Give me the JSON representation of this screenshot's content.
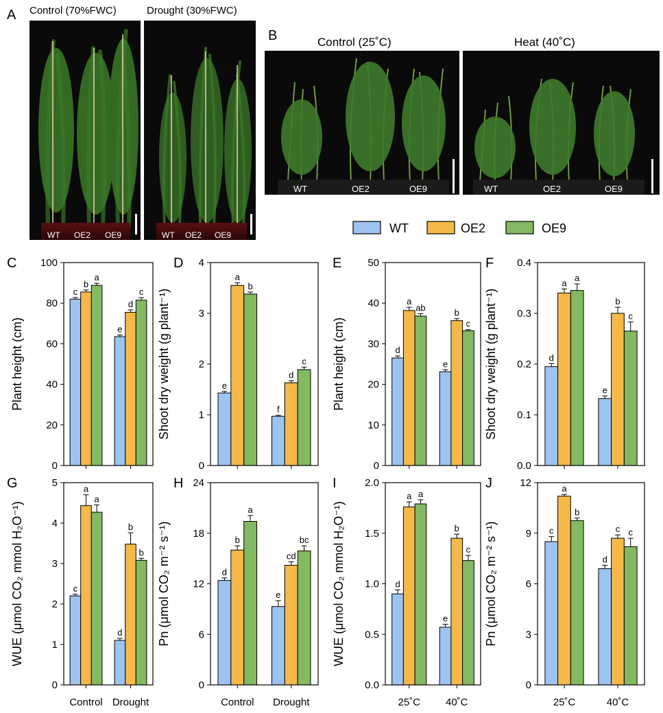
{
  "photos": {
    "A": {
      "letter": "A",
      "panels": [
        {
          "title": "Control (70%FWC)",
          "genotypes": [
            "WT",
            "OE2",
            "OE9"
          ]
        },
        {
          "title": "Drought (30%FWC)",
          "genotypes": [
            "WT",
            "OE2",
            "OE9"
          ]
        }
      ]
    },
    "B": {
      "letter": "B",
      "panels": [
        {
          "title": "Control (25˚C)",
          "genotypes": [
            "WT",
            "OE2",
            "OE9"
          ]
        },
        {
          "title": "Heat (40˚C)",
          "genotypes": [
            "WT",
            "OE2",
            "OE9"
          ]
        }
      ]
    }
  },
  "legend": {
    "entries": [
      {
        "label": "WT",
        "color": "#9dc3f0"
      },
      {
        "label": "OE2",
        "color": "#f5b949"
      },
      {
        "label": "OE9",
        "color": "#82b961"
      }
    ]
  },
  "chart_data": [
    {
      "panel": "C",
      "type": "bar",
      "categories": [
        "Control",
        "Drought"
      ],
      "ylabel": "Plant height (cm)",
      "ylim": [
        0,
        100
      ],
      "yticks": [
        "0",
        "20",
        "40",
        "60",
        "80",
        "100"
      ],
      "series": [
        {
          "name": "WT",
          "values": [
            82,
            63.5
          ],
          "errors": [
            0.8,
            0.8
          ],
          "letters": [
            "c",
            "e"
          ]
        },
        {
          "name": "OE2",
          "values": [
            85.5,
            75.5
          ],
          "errors": [
            1.0,
            1.2
          ],
          "letters": [
            "b",
            "d"
          ]
        },
        {
          "name": "OE9",
          "values": [
            88.8,
            81.5
          ],
          "errors": [
            1.0,
            1.2
          ],
          "letters": [
            "a",
            "c"
          ]
        }
      ]
    },
    {
      "panel": "D",
      "type": "bar",
      "categories": [
        "Control",
        "Drought"
      ],
      "ylabel": "Shoot dry weight (g plant⁻¹)",
      "ylim": [
        0,
        4
      ],
      "yticks": [
        "0",
        "1",
        "2",
        "3",
        "4"
      ],
      "series": [
        {
          "name": "WT",
          "values": [
            1.43,
            0.97
          ],
          "errors": [
            0.03,
            0.02
          ],
          "letters": [
            "e",
            "f"
          ]
        },
        {
          "name": "OE2",
          "values": [
            3.55,
            1.63
          ],
          "errors": [
            0.05,
            0.04
          ],
          "letters": [
            "a",
            "d"
          ]
        },
        {
          "name": "OE9",
          "values": [
            3.38,
            1.89
          ],
          "errors": [
            0.04,
            0.05
          ],
          "letters": [
            "b",
            "c"
          ]
        }
      ]
    },
    {
      "panel": "E",
      "type": "bar",
      "categories": [
        "25˚C",
        "40˚C"
      ],
      "ylabel": "Plant height (cm)",
      "ylim": [
        0,
        50
      ],
      "yticks": [
        "0",
        "10",
        "20",
        "30",
        "40",
        "50"
      ],
      "series": [
        {
          "name": "WT",
          "values": [
            26.5,
            23.1
          ],
          "errors": [
            0.5,
            0.5
          ],
          "letters": [
            "d",
            "e"
          ]
        },
        {
          "name": "OE2",
          "values": [
            38.2,
            35.7
          ],
          "errors": [
            0.8,
            0.5
          ],
          "letters": [
            "a",
            "b"
          ]
        },
        {
          "name": "OE9",
          "values": [
            36.8,
            33.2
          ],
          "errors": [
            0.6,
            0.3
          ],
          "letters": [
            "ab",
            "c"
          ]
        }
      ]
    },
    {
      "panel": "F",
      "type": "bar",
      "categories": [
        "25˚C",
        "40˚C"
      ],
      "ylabel": "Shoot dry weight (g plant⁻¹)",
      "ylim": [
        0,
        0.4
      ],
      "yticks": [
        "0.0",
        "0.1",
        "0.2",
        "0.3",
        "0.4"
      ],
      "series": [
        {
          "name": "WT",
          "values": [
            0.195,
            0.132
          ],
          "errors": [
            0.006,
            0.005
          ],
          "letters": [
            "d",
            "e"
          ]
        },
        {
          "name": "OE2",
          "values": [
            0.34,
            0.3
          ],
          "errors": [
            0.008,
            0.012
          ],
          "letters": [
            "a",
            "b"
          ]
        },
        {
          "name": "OE9",
          "values": [
            0.345,
            0.265
          ],
          "errors": [
            0.013,
            0.018
          ],
          "letters": [
            "a",
            "c"
          ]
        }
      ]
    },
    {
      "panel": "G",
      "type": "bar",
      "categories": [
        "Control",
        "Drought"
      ],
      "ylabel": "WUE (μmol CO₂ mmol H₂O⁻¹)",
      "ylim": [
        0,
        5
      ],
      "yticks": [
        "0",
        "1",
        "2",
        "3",
        "4",
        "5"
      ],
      "series": [
        {
          "name": "WT",
          "values": [
            2.2,
            1.1
          ],
          "errors": [
            0.04,
            0.05
          ],
          "letters": [
            "c",
            "d"
          ]
        },
        {
          "name": "OE2",
          "values": [
            4.43,
            3.48
          ],
          "errors": [
            0.27,
            0.28
          ],
          "letters": [
            "a",
            "b"
          ]
        },
        {
          "name": "OE9",
          "values": [
            4.27,
            3.08
          ],
          "errors": [
            0.18,
            0.05
          ],
          "letters": [
            "a",
            "b"
          ]
        }
      ]
    },
    {
      "panel": "H",
      "type": "bar",
      "categories": [
        "Control",
        "Drought"
      ],
      "ylabel": "Pn (μmol CO₂ m⁻² s⁻¹)",
      "ylim": [
        0,
        24
      ],
      "yticks": [
        "0",
        "6",
        "12",
        "18",
        "24"
      ],
      "series": [
        {
          "name": "WT",
          "values": [
            12.4,
            9.3
          ],
          "errors": [
            0.3,
            0.7
          ],
          "letters": [
            "d",
            "e"
          ]
        },
        {
          "name": "OE2",
          "values": [
            16.0,
            14.2
          ],
          "errors": [
            0.5,
            0.4
          ],
          "letters": [
            "b",
            "cd"
          ]
        },
        {
          "name": "OE9",
          "values": [
            19.4,
            15.9
          ],
          "errors": [
            0.7,
            0.6
          ],
          "letters": [
            "a",
            "bc"
          ]
        }
      ]
    },
    {
      "panel": "I",
      "type": "bar",
      "categories": [
        "25˚C",
        "40˚C"
      ],
      "ylabel": "WUE (μmol CO₂ mmol H₂O⁻¹)",
      "ylim": [
        0,
        2.0
      ],
      "yticks": [
        "0.0",
        "0.5",
        "1.0",
        "1.5",
        "2.0"
      ],
      "series": [
        {
          "name": "WT",
          "values": [
            0.9,
            0.57
          ],
          "errors": [
            0.04,
            0.03
          ],
          "letters": [
            "d",
            "e"
          ]
        },
        {
          "name": "OE2",
          "values": [
            1.76,
            1.45
          ],
          "errors": [
            0.05,
            0.04
          ],
          "letters": [
            "a",
            "b"
          ]
        },
        {
          "name": "OE9",
          "values": [
            1.79,
            1.23
          ],
          "errors": [
            0.04,
            0.05
          ],
          "letters": [
            "a",
            "c"
          ]
        }
      ]
    },
    {
      "panel": "J",
      "type": "bar",
      "categories": [
        "25˚C",
        "40˚C"
      ],
      "ylabel": "Pn (μmol CO₂ m⁻² s⁻¹)",
      "ylim": [
        0,
        12
      ],
      "yticks": [
        "0",
        "3",
        "6",
        "9",
        "12"
      ],
      "series": [
        {
          "name": "WT",
          "values": [
            8.5,
            6.9
          ],
          "errors": [
            0.3,
            0.2
          ],
          "letters": [
            "c",
            "d"
          ]
        },
        {
          "name": "OE2",
          "values": [
            11.2,
            8.7
          ],
          "errors": [
            0.1,
            0.2
          ],
          "letters": [
            "a",
            "c"
          ]
        },
        {
          "name": "OE9",
          "values": [
            9.75,
            8.2
          ],
          "errors": [
            0.15,
            0.5
          ],
          "letters": [
            "b",
            "c"
          ]
        }
      ]
    }
  ]
}
